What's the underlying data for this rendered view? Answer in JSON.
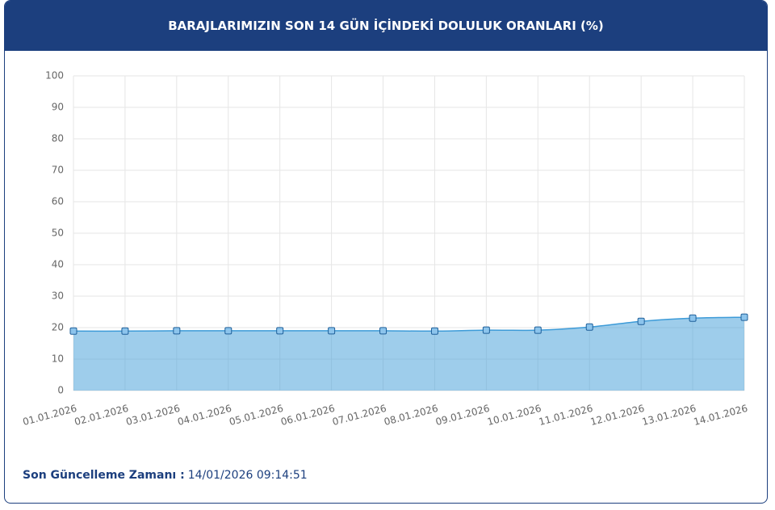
{
  "chart_data": {
    "type": "area",
    "title": "BARAJLARIMIZIN SON 14 GÜN İÇİNDEKİ DOLULUK ORANLARI (%)",
    "categories": [
      "01.01.2026",
      "02.01.2026",
      "03.01.2026",
      "04.01.2026",
      "05.01.2026",
      "06.01.2026",
      "07.01.2026",
      "08.01.2026",
      "09.01.2026",
      "10.01.2026",
      "11.01.2026",
      "12.01.2026",
      "13.01.2026",
      "14.01.2026"
    ],
    "values": [
      18.9,
      18.9,
      19.0,
      19.0,
      19.0,
      19.0,
      19.0,
      18.9,
      19.2,
      19.2,
      20.2,
      22.0,
      23.0,
      23.3
    ],
    "color": "#3d9bd8",
    "ylim": [
      0,
      100
    ],
    "yticks": [
      0,
      10,
      20,
      30,
      40,
      50,
      60,
      70,
      80,
      90,
      100
    ],
    "grid": true
  },
  "footer": {
    "label": "Son Güncelleme Zamanı :",
    "value": "14/01/2026 09:14:51"
  }
}
